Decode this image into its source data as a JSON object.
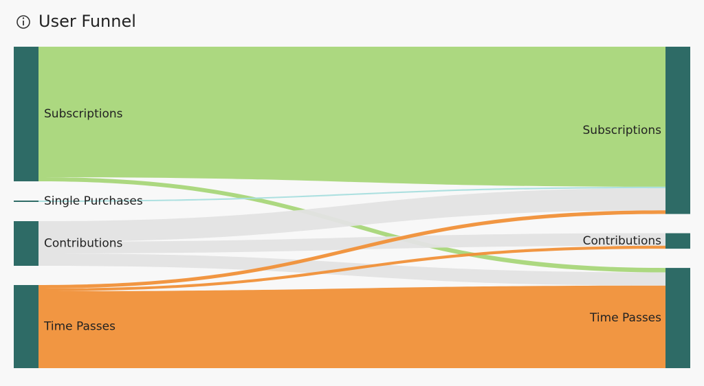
{
  "chart_data": {
    "type": "sankey",
    "title": "User Funnel",
    "node_color": "#2e6b66",
    "nodes": [
      {
        "name": "Subscriptions",
        "color": "#a8d679"
      },
      {
        "name": "Single Purchases",
        "color": "#a8dede"
      },
      {
        "name": "Contributions",
        "color": "#e3e3e3"
      },
      {
        "name": "Time Passes",
        "color": "#f09038"
      },
      {
        "name": "Subscriptions"
      },
      {
        "name": "Contributions"
      },
      {
        "name": "Time Passes"
      }
    ],
    "links": [
      {
        "source": 0,
        "target": 4,
        "value": 190
      },
      {
        "source": 0,
        "target": 6,
        "value": 6
      },
      {
        "source": 1,
        "target": 4,
        "value": 2
      },
      {
        "source": 2,
        "target": 4,
        "value": 30
      },
      {
        "source": 2,
        "target": 5,
        "value": 17
      },
      {
        "source": 2,
        "target": 6,
        "value": 18
      },
      {
        "source": 3,
        "target": 4,
        "value": 5
      },
      {
        "source": 3,
        "target": 5,
        "value": 4
      },
      {
        "source": 3,
        "target": 6,
        "value": 112
      }
    ]
  }
}
